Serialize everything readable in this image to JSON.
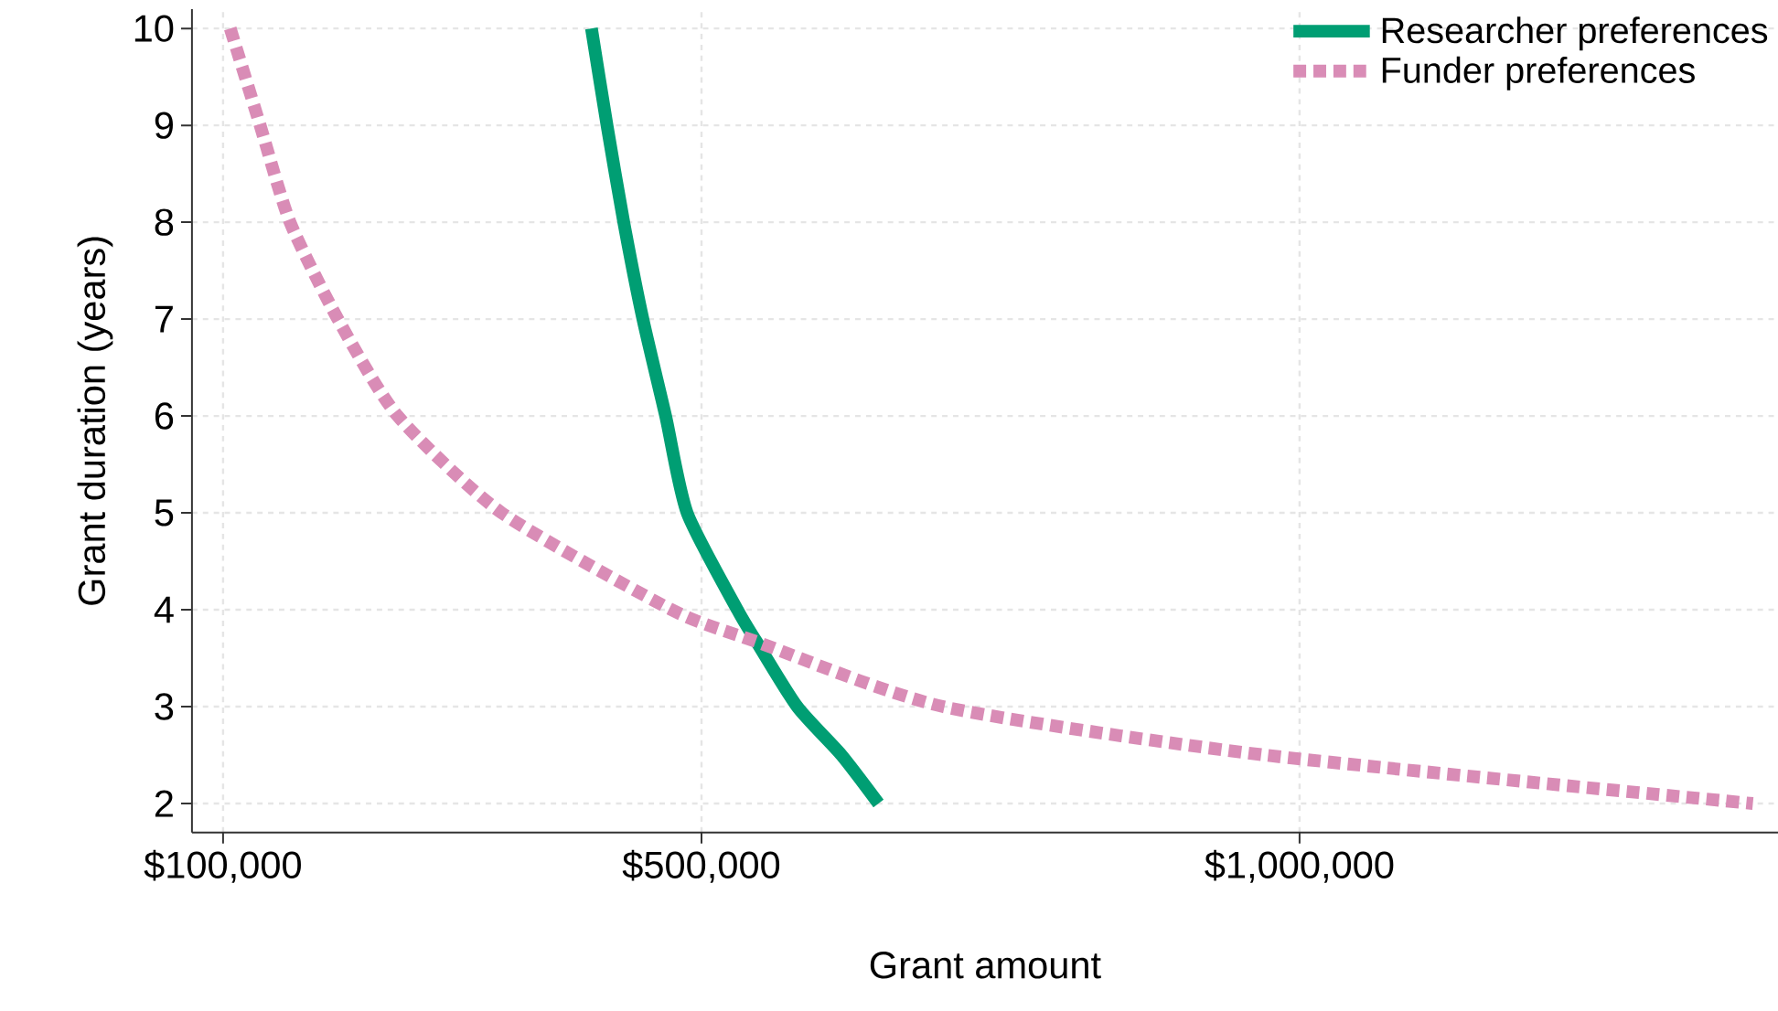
{
  "chart_data": {
    "type": "line",
    "xlabel": "Grant amount",
    "ylabel": "Grant duration (years)",
    "xlim": [
      74000,
      1400000
    ],
    "ylim": [
      1.7,
      10.2
    ],
    "xticks": [
      {
        "value": 100000,
        "label": "$100,000"
      },
      {
        "value": 500000,
        "label": "$500,000"
      },
      {
        "value": 1000000,
        "label": "$1,000,000"
      }
    ],
    "yticks": [
      2,
      3,
      4,
      5,
      6,
      7,
      8,
      9,
      10
    ],
    "grid": true,
    "legend": "top right",
    "series": [
      {
        "name": "Researcher preferences",
        "color": "#009e73",
        "line_style": "solid",
        "x": [
          408000,
          421000,
          435000,
          451000,
          470000,
          488000,
          530000,
          546000,
          580000,
          617000,
          648000
        ],
        "values": [
          10,
          9,
          8,
          7,
          6,
          5,
          4,
          3.67,
          3,
          2.5,
          2
        ]
      },
      {
        "name": "Funder preferences",
        "color": "#d98cb6",
        "line_style": "dashed",
        "x": [
          106000,
          131000,
          156000,
          196000,
          246000,
          333000,
          475000,
          546000,
          702000,
          971000,
          1379000
        ],
        "values": [
          10,
          9,
          8,
          7,
          6,
          5,
          4,
          3.67,
          3,
          2.5,
          2
        ]
      }
    ]
  }
}
